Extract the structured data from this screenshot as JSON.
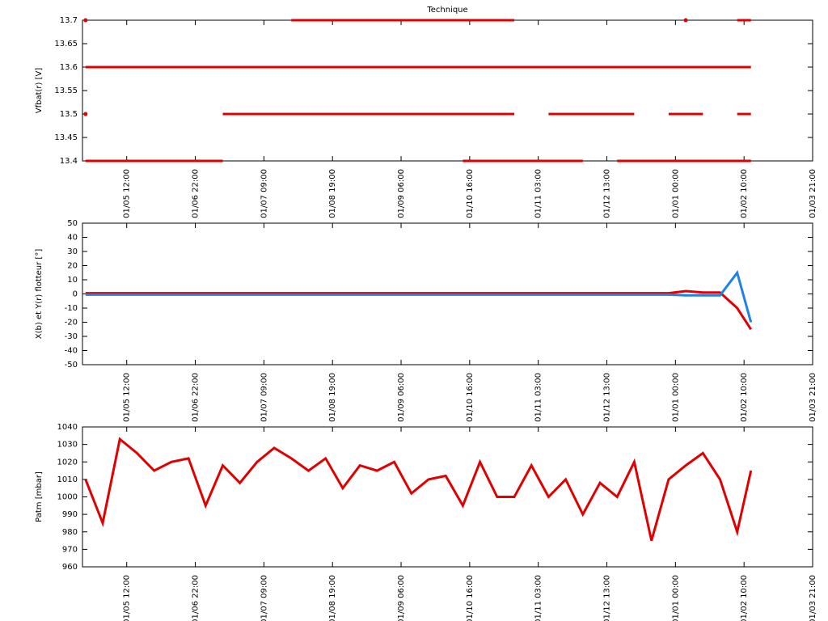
{
  "chart_data": [
    {
      "type": "line",
      "title": "Technique",
      "y_label": "Vfbat(r) [V]",
      "xlim": [
        -0.645,
        10
      ],
      "ylim": [
        13.4,
        13.7
      ],
      "xticks": [
        {
          "value": 0,
          "label": "01/05 12:00"
        },
        {
          "value": 1,
          "label": "01/06 22:00"
        },
        {
          "value": 2,
          "label": "01/07 09:00"
        },
        {
          "value": 3,
          "label": "01/08 19:00"
        },
        {
          "value": 4,
          "label": "01/09 06:00"
        },
        {
          "value": 5,
          "label": "01/10 16:00"
        },
        {
          "value": 6,
          "label": "01/11 03:00"
        },
        {
          "value": 7,
          "label": "01/12 13:00"
        },
        {
          "value": 8,
          "label": "01/01 00:00"
        },
        {
          "value": 9,
          "label": "01/02 10:00"
        },
        {
          "value": 10,
          "label": "01/03 21:00"
        }
      ],
      "yticks": [
        13.4,
        13.45,
        13.5,
        13.55,
        13.6,
        13.65,
        13.7
      ],
      "x": [
        -0.6,
        -0.35,
        -0.1,
        0.15,
        0.4,
        0.65,
        0.9,
        1.15,
        1.4,
        1.65,
        1.9,
        2.15,
        2.4,
        2.65,
        2.9,
        3.15,
        3.4,
        3.65,
        3.9,
        4.15,
        4.4,
        4.65,
        4.9,
        5.15,
        5.4,
        5.65,
        5.9,
        6.15,
        6.4,
        6.65,
        6.9,
        7.15,
        7.4,
        7.65,
        7.9,
        8.15,
        8.4,
        8.65,
        8.9,
        9.1
      ],
      "series": [
        {
          "color": "#e00000",
          "values": [
            13.7,
            null,
            null,
            null,
            null,
            null,
            null,
            null,
            null,
            null,
            null,
            null,
            13.7,
            13.7,
            13.7,
            13.7,
            13.7,
            13.7,
            13.7,
            13.7,
            13.7,
            13.7,
            13.7,
            13.7,
            13.7,
            13.7,
            null,
            null,
            null,
            null,
            null,
            null,
            null,
            null,
            null,
            13.7,
            null,
            null,
            13.7,
            13.7
          ]
        },
        {
          "color": "#e00000",
          "values": [
            13.6,
            13.6,
            13.6,
            13.6,
            13.6,
            13.6,
            13.6,
            13.6,
            13.6,
            13.6,
            13.6,
            13.6,
            13.6,
            13.6,
            13.6,
            13.6,
            13.6,
            13.6,
            13.6,
            13.6,
            13.6,
            13.6,
            13.6,
            13.6,
            13.6,
            13.6,
            13.6,
            13.6,
            13.6,
            13.6,
            13.6,
            13.6,
            13.6,
            13.6,
            13.6,
            13.6,
            13.6,
            13.6,
            13.6,
            13.6
          ]
        },
        {
          "color": "#e00000",
          "values": [
            13.5,
            null,
            null,
            null,
            null,
            null,
            null,
            null,
            13.5,
            13.5,
            13.5,
            13.5,
            13.5,
            13.5,
            13.5,
            13.5,
            13.5,
            13.5,
            13.5,
            13.5,
            13.5,
            13.5,
            13.5,
            13.5,
            13.5,
            13.5,
            null,
            13.5,
            13.5,
            13.5,
            13.5,
            13.5,
            13.5,
            null,
            13.5,
            13.5,
            13.5,
            null,
            13.5,
            13.5
          ]
        },
        {
          "color": "#e00000",
          "values": [
            13.4,
            13.4,
            13.4,
            13.4,
            13.4,
            13.4,
            13.4,
            13.4,
            13.4,
            null,
            null,
            null,
            null,
            null,
            null,
            null,
            null,
            null,
            null,
            null,
            null,
            null,
            13.4,
            13.4,
            13.4,
            13.4,
            13.4,
            13.4,
            13.4,
            13.4,
            null,
            13.4,
            13.4,
            13.4,
            13.4,
            13.4,
            13.4,
            13.4,
            13.4,
            13.4
          ]
        }
      ]
    },
    {
      "type": "line",
      "y_label": "X(b) et Y(r) flotteur [°]",
      "xlim": [
        -0.645,
        10
      ],
      "ylim": [
        -50,
        50
      ],
      "xticks": [
        {
          "value": 0,
          "label": "01/05 12:00"
        },
        {
          "value": 1,
          "label": "01/06 22:00"
        },
        {
          "value": 2,
          "label": "01/07 09:00"
        },
        {
          "value": 3,
          "label": "01/08 19:00"
        },
        {
          "value": 4,
          "label": "01/09 06:00"
        },
        {
          "value": 5,
          "label": "01/10 16:00"
        },
        {
          "value": 6,
          "label": "01/11 03:00"
        },
        {
          "value": 7,
          "label": "01/12 13:00"
        },
        {
          "value": 8,
          "label": "01/01 00:00"
        },
        {
          "value": 9,
          "label": "01/02 10:00"
        },
        {
          "value": 10,
          "label": "01/03 21:00"
        }
      ],
      "yticks": [
        -50,
        -40,
        -30,
        -20,
        -10,
        0,
        10,
        20,
        30,
        40,
        50
      ],
      "x": [
        -0.6,
        -0.35,
        -0.1,
        0.15,
        0.4,
        0.65,
        0.9,
        1.15,
        1.4,
        1.65,
        1.9,
        2.15,
        2.4,
        2.65,
        2.9,
        3.15,
        3.4,
        3.65,
        3.9,
        4.15,
        4.4,
        4.65,
        4.9,
        5.15,
        5.4,
        5.65,
        5.9,
        6.15,
        6.4,
        6.65,
        6.9,
        7.15,
        7.4,
        7.65,
        7.9,
        8.15,
        8.4,
        8.65,
        8.9,
        9.1
      ],
      "series": [
        {
          "color": "#e00000",
          "values": [
            0.5,
            0.5,
            0.5,
            0.5,
            0.5,
            0.5,
            0.5,
            0.5,
            0.5,
            0.5,
            0.5,
            0.5,
            0.5,
            0.5,
            0.5,
            0.5,
            0.5,
            0.5,
            0.5,
            0.5,
            0.5,
            0.5,
            0.5,
            0.5,
            0.5,
            0.5,
            0.5,
            0.5,
            0.5,
            0.5,
            0.5,
            0.5,
            0.5,
            0.5,
            0.5,
            2,
            1,
            1,
            -10,
            -25
          ]
        },
        {
          "color": "#1e82e6",
          "values": [
            -0.5,
            -0.5,
            -0.5,
            -0.5,
            -0.5,
            -0.5,
            -0.5,
            -0.5,
            -0.5,
            -0.5,
            -0.5,
            -0.5,
            -0.5,
            -0.5,
            -0.5,
            -0.5,
            -0.5,
            -0.5,
            -0.5,
            -0.5,
            -0.5,
            -0.5,
            -0.5,
            -0.5,
            -0.5,
            -0.5,
            -0.5,
            -0.5,
            -0.5,
            -0.5,
            -0.5,
            -0.5,
            -0.5,
            -0.5,
            -0.5,
            -1,
            -1,
            -1,
            15,
            -20
          ]
        }
      ]
    },
    {
      "type": "line",
      "y_label": "Patm [mbar]",
      "xlim": [
        -0.645,
        10
      ],
      "ylim": [
        960,
        1040
      ],
      "xticks": [
        {
          "value": 0,
          "label": "01/05 12:00"
        },
        {
          "value": 1,
          "label": "01/06 22:00"
        },
        {
          "value": 2,
          "label": "01/07 09:00"
        },
        {
          "value": 3,
          "label": "01/08 19:00"
        },
        {
          "value": 4,
          "label": "01/09 06:00"
        },
        {
          "value": 5,
          "label": "01/10 16:00"
        },
        {
          "value": 6,
          "label": "01/11 03:00"
        },
        {
          "value": 7,
          "label": "01/12 13:00"
        },
        {
          "value": 8,
          "label": "01/01 00:00"
        },
        {
          "value": 9,
          "label": "01/02 10:00"
        },
        {
          "value": 10,
          "label": "01/03 21:00"
        }
      ],
      "yticks": [
        960,
        970,
        980,
        990,
        1000,
        1010,
        1020,
        1030,
        1040
      ],
      "x": [
        -0.6,
        -0.35,
        -0.1,
        0.15,
        0.4,
        0.65,
        0.9,
        1.15,
        1.4,
        1.65,
        1.9,
        2.15,
        2.4,
        2.65,
        2.9,
        3.15,
        3.4,
        3.65,
        3.9,
        4.15,
        4.4,
        4.65,
        4.9,
        5.15,
        5.4,
        5.65,
        5.9,
        6.15,
        6.4,
        6.65,
        6.9,
        7.15,
        7.4,
        7.65,
        7.9,
        8.15,
        8.4,
        8.65,
        8.9,
        9.1
      ],
      "series": [
        {
          "color": "#e00000",
          "values": [
            1010,
            985,
            1033,
            1025,
            1015,
            1020,
            1022,
            995,
            1018,
            1008,
            1020,
            1028,
            1022,
            1015,
            1022,
            1005,
            1018,
            1015,
            1020,
            1002,
            1010,
            1012,
            995,
            1020,
            1000,
            1000,
            1018,
            1000,
            1010,
            990,
            1008,
            1000,
            1020,
            975,
            1010,
            1018,
            1025,
            1010,
            980,
            1015
          ]
        }
      ]
    }
  ]
}
